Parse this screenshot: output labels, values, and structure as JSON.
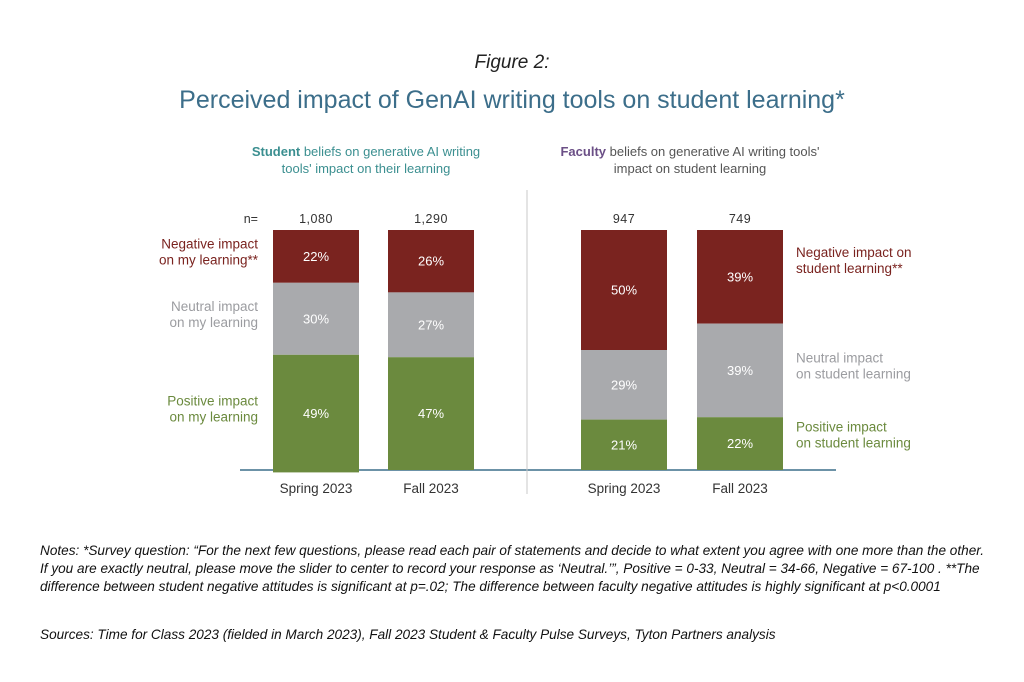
{
  "figure_label": "Figure 2:",
  "title": "Perceived impact of GenAI writing tools on student learning*",
  "panels": {
    "student": {
      "lead": "Student",
      "rest": " beliefs on generative AI writing tools' impact on their learning"
    },
    "faculty": {
      "lead": "Faculty",
      "rest": " beliefs on generative AI writing tools' impact on student learning"
    }
  },
  "colors": {
    "negative": "#7a231f",
    "neutral": "#a9aaad",
    "positive": "#6b8a3e",
    "axis": "#3c6e8a",
    "divider": "#c8c8c8"
  },
  "chart_data": [
    {
      "type": "bar",
      "stacked": true,
      "panel": "student",
      "n_label": "n=",
      "categories": [
        "Spring 2023",
        "Fall 2023"
      ],
      "n": [
        "1,080",
        "1,290"
      ],
      "series": [
        {
          "name": "Negative impact on my learning**",
          "key": "negative",
          "values": [
            22,
            26
          ]
        },
        {
          "name": "Neutral impact on my learning",
          "key": "neutral",
          "values": [
            30,
            27
          ]
        },
        {
          "name": "Positive impact on my learning",
          "key": "positive",
          "values": [
            49,
            47
          ]
        }
      ],
      "value_suffix": "%",
      "ylim": [
        0,
        100
      ],
      "legend_placement": "left"
    },
    {
      "type": "bar",
      "stacked": true,
      "panel": "faculty",
      "categories": [
        "Spring 2023",
        "Fall 2023"
      ],
      "n": [
        "947",
        "749"
      ],
      "series": [
        {
          "name": "Negative impact on student learning**",
          "key": "negative",
          "values": [
            50,
            39
          ]
        },
        {
          "name": "Neutral impact on student learning",
          "key": "neutral",
          "values": [
            29,
            39
          ]
        },
        {
          "name": "Positive impact on student learning",
          "key": "positive",
          "values": [
            21,
            22
          ]
        }
      ],
      "value_suffix": "%",
      "ylim": [
        0,
        100
      ],
      "legend_placement": "right"
    }
  ],
  "legend_lines": {
    "student": {
      "negative": [
        "Negative impact",
        "on my learning**"
      ],
      "neutral": [
        "Neutral impact",
        "on my learning"
      ],
      "positive": [
        "Positive impact",
        "on my learning"
      ]
    },
    "faculty": {
      "negative": [
        "Negative impact on",
        "student learning**"
      ],
      "neutral": [
        "Neutral impact",
        "on student learning"
      ],
      "positive": [
        "Positive impact",
        "on student learning"
      ]
    }
  },
  "notes": "Notes: *Survey question: “For the next few questions, please read each pair of statements and decide to what extent you agree with one more than the other. If you are exactly neutral, please move the slider to center to record your response as ‘Neutral.’”, Positive = 0-33, Neutral = 34-66, Negative = 67-100 . **The difference between student negative attitudes is significant at p=.02; The difference between faculty negative attitudes is highly significant at p<0.0001",
  "sources": "Sources: Time for Class 2023 (fielded in March 2023), Fall 2023 Student & Faculty Pulse Surveys, Tyton Partners analysis"
}
